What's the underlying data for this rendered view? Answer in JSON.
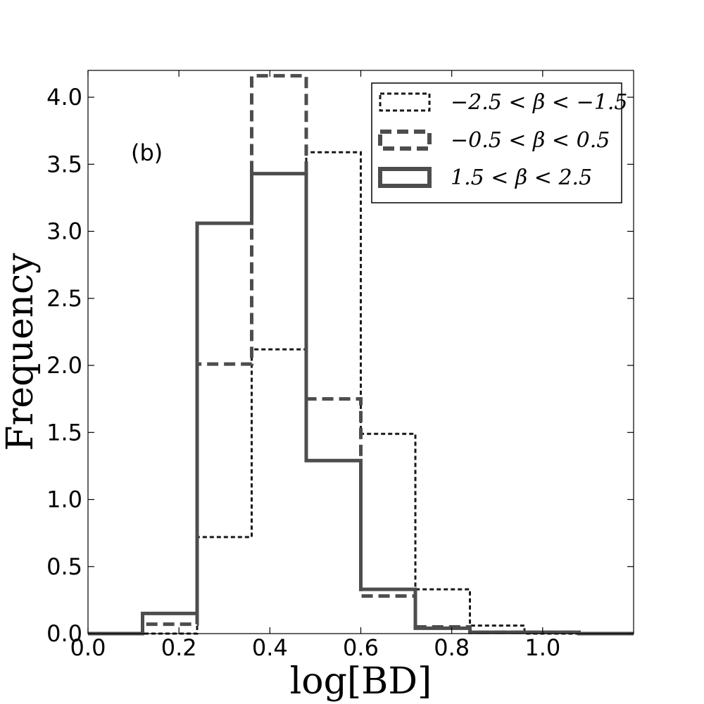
{
  "chart_data": {
    "type": "histogram",
    "title": "",
    "panel_label": "(b)",
    "xlabel": "log[BD]",
    "ylabel": "Frequency",
    "xlim": [
      0.0,
      1.2
    ],
    "ylim": [
      0.0,
      4.2
    ],
    "xticks": [
      0.0,
      0.2,
      0.4,
      0.6,
      0.8,
      1.0
    ],
    "xtick_labels": [
      "0.0",
      "0.2",
      "0.4",
      "0.6",
      "0.8",
      "1.0"
    ],
    "yticks": [
      0.0,
      0.5,
      1.0,
      1.5,
      2.0,
      2.5,
      3.0,
      3.5,
      4.0
    ],
    "ytick_labels": [
      "0.0",
      "0.5",
      "1.0",
      "1.5",
      "2.0",
      "2.5",
      "3.0",
      "3.5",
      "4.0"
    ],
    "grid": false,
    "legend_position": "top-right",
    "bin_edges": [
      0.0,
      0.12,
      0.24,
      0.36,
      0.48,
      0.6,
      0.72,
      0.84,
      0.96,
      1.08,
      1.2
    ],
    "series": [
      {
        "name": "−2.5 < β < −1.5",
        "style": "dotted-thin",
        "color": "#1a1a1a",
        "values": [
          0.0,
          0.0,
          0.72,
          2.12,
          3.59,
          1.49,
          0.33,
          0.06,
          0.0,
          0.0
        ]
      },
      {
        "name": "−0.5 < β < 0.5",
        "style": "dashed-thick",
        "color": "#4d4d4d",
        "values": [
          0.0,
          0.07,
          2.01,
          4.16,
          1.75,
          0.28,
          0.05,
          0.01,
          0.01,
          0.0
        ]
      },
      {
        "name": "1.5 < β < 2.5",
        "style": "solid-thick",
        "color": "#4d4d4d",
        "values": [
          0.0,
          0.15,
          3.06,
          3.43,
          1.29,
          0.33,
          0.04,
          0.01,
          0.01,
          0.0
        ]
      }
    ]
  }
}
